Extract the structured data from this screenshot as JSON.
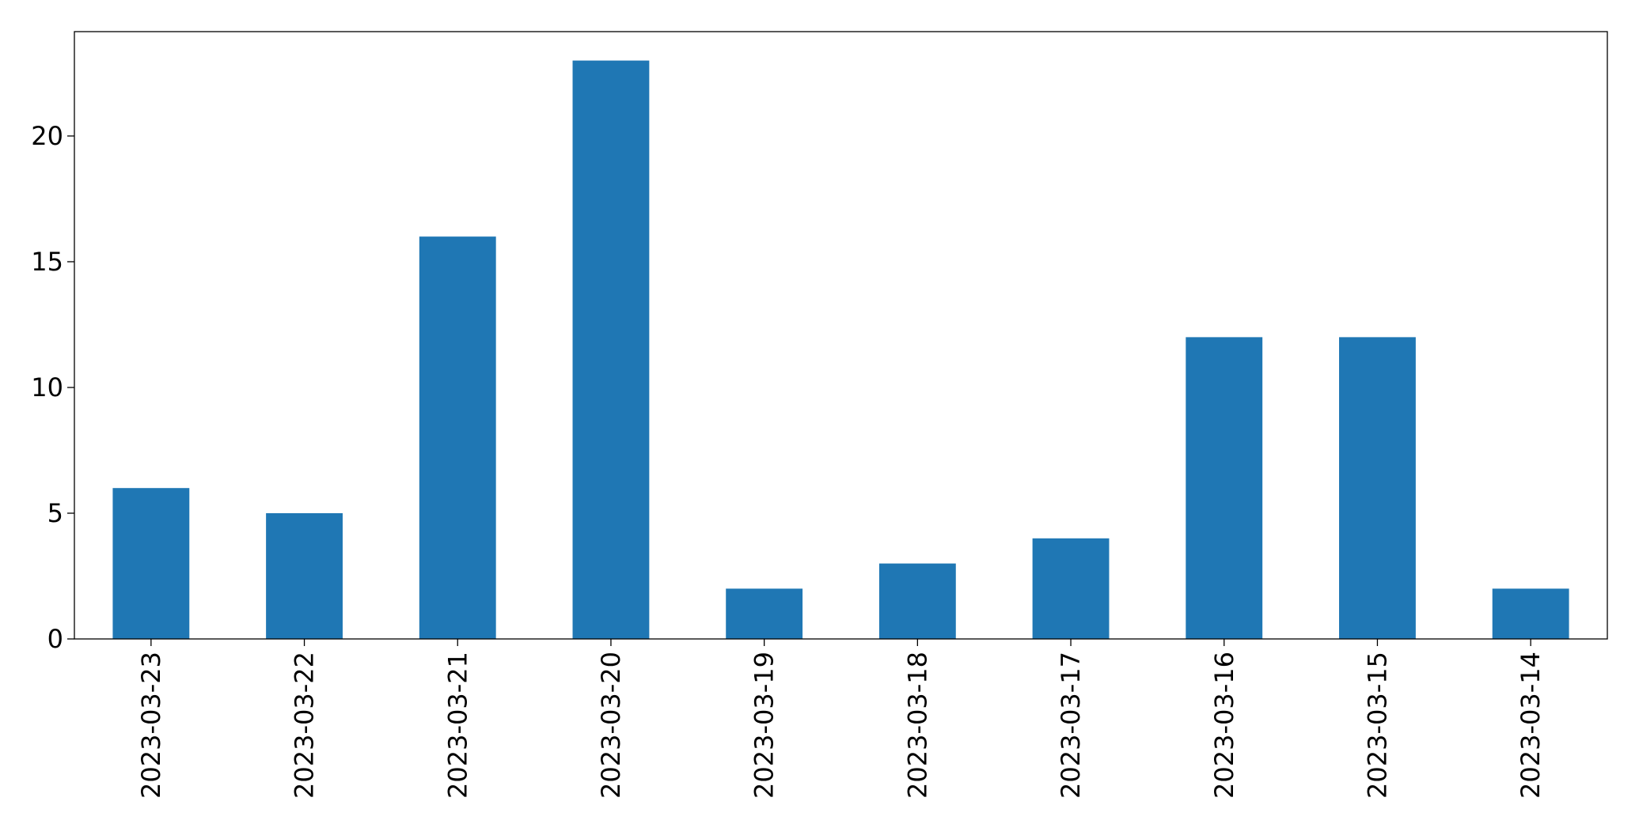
{
  "chart_data": {
    "type": "bar",
    "categories": [
      "2023-03-23",
      "2023-03-22",
      "2023-03-21",
      "2023-03-20",
      "2023-03-19",
      "2023-03-18",
      "2023-03-17",
      "2023-03-16",
      "2023-03-15",
      "2023-03-14"
    ],
    "values": [
      6,
      5,
      16,
      23,
      2,
      3,
      4,
      12,
      12,
      2
    ],
    "color": "#1f77b4",
    "ylim": [
      0,
      24.15
    ],
    "yticks": [
      0,
      5,
      10,
      15,
      20
    ],
    "grid": false
  }
}
